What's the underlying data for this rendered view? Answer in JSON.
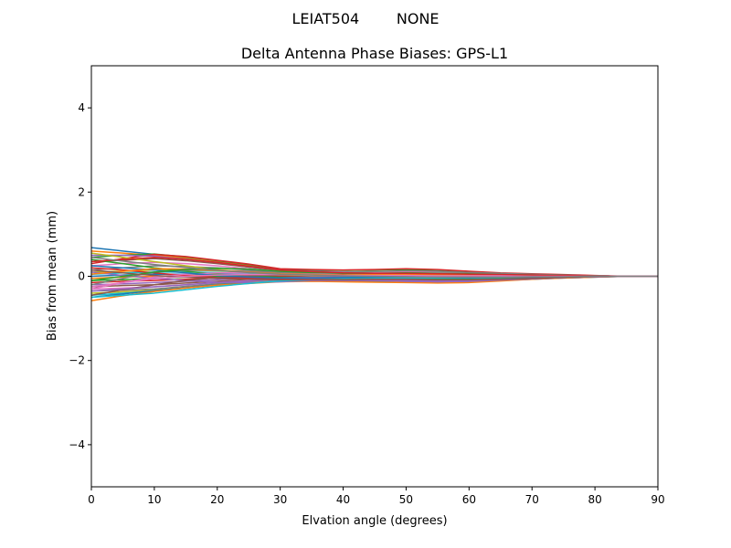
{
  "chart_data": {
    "type": "line",
    "suptitle": "LEIAT504        NONE",
    "title": "Delta Antenna Phase Biases: GPS-L1",
    "xlabel": "Elvation angle (degrees)",
    "ylabel": "Bias from mean (mm)",
    "xlim": [
      0,
      90
    ],
    "ylim": [
      -5,
      5
    ],
    "xticks": [
      "0",
      "10",
      "20",
      "30",
      "40",
      "50",
      "60",
      "70",
      "80",
      "90"
    ],
    "yticks": [
      "−4",
      "−2",
      "0",
      "2",
      "4"
    ],
    "grid": false,
    "legend": "none",
    "x": [
      0,
      5,
      10,
      15,
      20,
      25,
      30,
      35,
      40,
      45,
      50,
      55,
      60,
      65,
      70,
      75,
      80,
      85,
      90
    ],
    "palette": [
      "#1f77b4",
      "#ff7f0e",
      "#2ca02c",
      "#d62728",
      "#9467bd",
      "#8c564b",
      "#e377c2",
      "#7f7f7f",
      "#bcbd22",
      "#17becf"
    ],
    "series": [
      {
        "values": [
          0.68,
          0.6,
          0.52,
          0.42,
          0.32,
          0.22,
          0.15,
          0.1,
          0.06,
          0.05,
          0.05,
          0.05,
          0.04,
          0.03,
          0.02,
          0.01,
          0.0,
          0.0,
          0.0
        ]
      },
      {
        "values": [
          0.6,
          0.55,
          0.5,
          0.44,
          0.36,
          0.26,
          0.16,
          0.12,
          0.1,
          0.11,
          0.12,
          0.1,
          0.07,
          0.05,
          0.04,
          0.02,
          0.01,
          0.0,
          0.0
        ]
      },
      {
        "values": [
          0.45,
          0.5,
          0.53,
          0.46,
          0.37,
          0.28,
          0.17,
          0.15,
          0.14,
          0.15,
          0.16,
          0.13,
          0.1,
          0.07,
          0.05,
          0.03,
          0.01,
          0.0,
          0.0
        ]
      },
      {
        "values": [
          0.3,
          0.42,
          0.52,
          0.47,
          0.38,
          0.29,
          0.18,
          0.16,
          0.15,
          0.16,
          0.18,
          0.16,
          0.12,
          0.08,
          0.06,
          0.04,
          0.02,
          0.0,
          0.0
        ]
      },
      {
        "values": [
          0.5,
          0.5,
          0.48,
          0.4,
          0.33,
          0.24,
          0.15,
          0.12,
          0.1,
          0.11,
          0.12,
          0.1,
          0.08,
          0.06,
          0.04,
          0.02,
          0.01,
          0.0,
          0.0
        ]
      },
      {
        "values": [
          0.35,
          0.38,
          0.42,
          0.37,
          0.3,
          0.22,
          0.14,
          0.11,
          0.08,
          0.09,
          0.1,
          0.09,
          0.07,
          0.05,
          0.03,
          0.02,
          0.01,
          0.0,
          0.0
        ]
      },
      {
        "values": [
          0.25,
          0.3,
          0.33,
          0.3,
          0.25,
          0.18,
          0.12,
          0.09,
          0.07,
          0.08,
          0.09,
          0.08,
          0.06,
          0.04,
          0.03,
          0.02,
          0.01,
          0.0,
          0.0
        ]
      },
      {
        "values": [
          0.15,
          0.2,
          0.25,
          0.23,
          0.2,
          0.15,
          0.1,
          0.08,
          0.06,
          0.07,
          0.08,
          0.07,
          0.05,
          0.04,
          0.03,
          0.02,
          0.01,
          0.0,
          0.0
        ]
      },
      {
        "values": [
          0.1,
          0.12,
          0.15,
          0.15,
          0.13,
          0.1,
          0.07,
          0.05,
          0.04,
          0.05,
          0.06,
          0.05,
          0.04,
          0.03,
          0.02,
          0.01,
          0.0,
          0.0,
          0.0
        ]
      },
      {
        "values": [
          0.05,
          0.08,
          0.1,
          0.1,
          0.09,
          0.07,
          0.05,
          0.04,
          0.03,
          0.04,
          0.05,
          0.04,
          0.03,
          0.02,
          0.02,
          0.01,
          0.0,
          0.0,
          0.0
        ]
      },
      {
        "values": [
          0.0,
          0.03,
          0.05,
          0.05,
          0.05,
          0.04,
          0.03,
          0.02,
          0.02,
          0.03,
          0.03,
          0.03,
          0.02,
          0.02,
          0.01,
          0.01,
          0.0,
          0.0,
          0.0
        ]
      },
      {
        "values": [
          -0.05,
          -0.02,
          0.0,
          0.02,
          0.02,
          0.02,
          0.01,
          0.01,
          0.01,
          0.02,
          0.02,
          0.02,
          0.01,
          0.01,
          0.01,
          0.0,
          0.0,
          0.0,
          0.0
        ]
      },
      {
        "values": [
          -0.1,
          -0.08,
          -0.05,
          -0.02,
          0.0,
          0.0,
          0.0,
          0.0,
          0.0,
          0.01,
          0.01,
          0.01,
          0.0,
          0.0,
          0.0,
          0.0,
          0.0,
          0.0,
          0.0
        ]
      },
      {
        "values": [
          -0.15,
          -0.12,
          -0.1,
          -0.07,
          -0.04,
          -0.02,
          -0.01,
          -0.01,
          -0.01,
          0.0,
          0.0,
          -0.01,
          -0.01,
          -0.01,
          -0.01,
          0.0,
          0.0,
          0.0,
          0.0
        ]
      },
      {
        "values": [
          -0.2,
          -0.18,
          -0.15,
          -0.12,
          -0.08,
          -0.05,
          -0.03,
          -0.02,
          -0.02,
          -0.02,
          -0.02,
          -0.03,
          -0.03,
          -0.02,
          -0.02,
          -0.01,
          0.0,
          0.0,
          0.0
        ]
      },
      {
        "values": [
          -0.25,
          -0.22,
          -0.2,
          -0.16,
          -0.12,
          -0.08,
          -0.05,
          -0.04,
          -0.04,
          -0.05,
          -0.05,
          -0.05,
          -0.05,
          -0.04,
          -0.03,
          -0.02,
          -0.01,
          0.0,
          0.0
        ]
      },
      {
        "values": [
          -0.3,
          -0.28,
          -0.25,
          -0.2,
          -0.15,
          -0.1,
          -0.07,
          -0.06,
          -0.06,
          -0.07,
          -0.08,
          -0.08,
          -0.07,
          -0.05,
          -0.04,
          -0.02,
          -0.01,
          0.0,
          0.0
        ]
      },
      {
        "values": [
          -0.35,
          -0.33,
          -0.3,
          -0.24,
          -0.18,
          -0.13,
          -0.09,
          -0.08,
          -0.08,
          -0.09,
          -0.1,
          -0.1,
          -0.09,
          -0.07,
          -0.05,
          -0.03,
          -0.01,
          0.0,
          0.0
        ]
      },
      {
        "values": [
          -0.4,
          -0.37,
          -0.33,
          -0.27,
          -0.2,
          -0.15,
          -0.1,
          -0.09,
          -0.1,
          -0.11,
          -0.12,
          -0.12,
          -0.11,
          -0.08,
          -0.06,
          -0.03,
          -0.01,
          0.0,
          0.0
        ]
      },
      {
        "values": [
          -0.45,
          -0.4,
          -0.35,
          -0.28,
          -0.21,
          -0.16,
          -0.11,
          -0.1,
          -0.11,
          -0.12,
          -0.13,
          -0.13,
          -0.12,
          -0.09,
          -0.06,
          -0.03,
          -0.02,
          0.0,
          0.0
        ]
      },
      {
        "values": [
          -0.5,
          -0.42,
          -0.34,
          -0.27,
          -0.2,
          -0.16,
          -0.12,
          -0.11,
          -0.12,
          -0.13,
          -0.14,
          -0.15,
          -0.14,
          -0.1,
          -0.07,
          -0.04,
          -0.02,
          0.0,
          0.0
        ]
      },
      {
        "values": [
          -0.58,
          -0.46,
          -0.36,
          -0.28,
          -0.21,
          -0.17,
          -0.13,
          -0.12,
          -0.13,
          -0.14,
          -0.15,
          -0.16,
          -0.15,
          -0.11,
          -0.07,
          -0.04,
          -0.02,
          0.0,
          0.0
        ]
      },
      {
        "values": [
          0.4,
          0.3,
          0.2,
          0.12,
          0.05,
          0.0,
          -0.03,
          -0.05,
          -0.06,
          -0.05,
          -0.04,
          -0.05,
          -0.05,
          -0.04,
          -0.03,
          -0.02,
          -0.01,
          0.0,
          0.0
        ]
      },
      {
        "values": [
          0.2,
          0.15,
          0.08,
          0.02,
          -0.03,
          -0.05,
          -0.06,
          -0.07,
          -0.09,
          -0.1,
          -0.1,
          -0.1,
          -0.09,
          -0.07,
          -0.05,
          -0.03,
          -0.01,
          0.0,
          0.0
        ]
      },
      {
        "values": [
          0.1,
          0.02,
          -0.05,
          -0.1,
          -0.14,
          -0.15,
          -0.13,
          -0.1,
          -0.1,
          -0.1,
          -0.09,
          -0.1,
          -0.1,
          -0.08,
          -0.06,
          -0.03,
          -0.01,
          0.0,
          0.0
        ]
      },
      {
        "values": [
          -0.45,
          -0.32,
          -0.2,
          -0.1,
          -0.03,
          0.01,
          0.03,
          0.04,
          0.06,
          0.08,
          0.1,
          0.1,
          0.08,
          0.06,
          0.04,
          0.02,
          0.01,
          0.0,
          0.0
        ]
      },
      {
        "values": [
          -0.3,
          -0.15,
          -0.02,
          0.05,
          0.08,
          0.08,
          0.07,
          0.06,
          0.07,
          0.09,
          0.11,
          0.1,
          0.08,
          0.06,
          0.04,
          0.02,
          0.01,
          0.0,
          0.0
        ]
      },
      {
        "values": [
          -0.2,
          -0.05,
          0.1,
          0.14,
          0.14,
          0.12,
          0.09,
          0.08,
          0.09,
          0.11,
          0.13,
          0.12,
          0.09,
          0.07,
          0.05,
          0.03,
          0.01,
          0.0,
          0.0
        ]
      },
      {
        "values": [
          0.55,
          0.45,
          0.35,
          0.25,
          0.16,
          0.09,
          0.04,
          0.02,
          0.02,
          0.03,
          0.04,
          0.04,
          0.03,
          0.02,
          0.01,
          0.01,
          0.0,
          0.0,
          0.0
        ]
      },
      {
        "values": [
          -0.5,
          -0.45,
          -0.4,
          -0.32,
          -0.24,
          -0.17,
          -0.11,
          -0.08,
          -0.06,
          -0.05,
          -0.04,
          -0.04,
          -0.04,
          -0.03,
          -0.02,
          -0.01,
          0.0,
          0.0,
          0.0
        ]
      },
      {
        "values": [
          0.25,
          0.2,
          0.15,
          0.08,
          0.02,
          -0.02,
          -0.04,
          -0.04,
          -0.03,
          -0.02,
          -0.01,
          -0.02,
          -0.03,
          -0.02,
          -0.02,
          -0.01,
          0.0,
          0.0,
          0.0
        ]
      },
      {
        "values": [
          0.05,
          0.12,
          0.18,
          0.17,
          0.14,
          0.1,
          0.06,
          0.04,
          0.03,
          0.04,
          0.05,
          0.05,
          0.04,
          0.03,
          0.02,
          0.01,
          0.0,
          0.0,
          0.0
        ]
      },
      {
        "values": [
          -0.1,
          0.0,
          0.1,
          0.16,
          0.19,
          0.17,
          0.12,
          0.09,
          0.07,
          0.07,
          0.08,
          0.07,
          0.06,
          0.04,
          0.03,
          0.02,
          0.01,
          0.0,
          0.0
        ]
      },
      {
        "values": [
          0.35,
          0.4,
          0.45,
          0.4,
          0.33,
          0.24,
          0.15,
          0.11,
          0.08,
          0.07,
          0.07,
          0.06,
          0.05,
          0.04,
          0.03,
          0.02,
          0.01,
          0.0,
          0.0
        ]
      },
      {
        "values": [
          -0.35,
          -0.3,
          -0.25,
          -0.2,
          -0.15,
          -0.11,
          -0.08,
          -0.07,
          -0.08,
          -0.1,
          -0.12,
          -0.13,
          -0.12,
          -0.09,
          -0.06,
          -0.03,
          -0.01,
          0.0,
          0.0
        ]
      },
      {
        "values": [
          0.15,
          0.08,
          0.02,
          -0.02,
          -0.05,
          -0.07,
          -0.08,
          -0.08,
          -0.08,
          -0.07,
          -0.07,
          -0.08,
          -0.08,
          -0.07,
          -0.05,
          -0.03,
          -0.01,
          0.0,
          0.0
        ]
      },
      {
        "values": [
          -0.25,
          -0.15,
          -0.06,
          0.0,
          0.03,
          0.04,
          0.04,
          0.03,
          0.02,
          0.02,
          0.02,
          0.01,
          0.01,
          0.01,
          0.0,
          0.0,
          0.0,
          0.0,
          0.0
        ]
      },
      {
        "values": [
          0.45,
          0.36,
          0.28,
          0.21,
          0.14,
          0.09,
          0.05,
          0.03,
          0.01,
          0.0,
          -0.01,
          -0.02,
          -0.02,
          -0.02,
          -0.01,
          -0.01,
          0.0,
          0.0,
          0.0
        ]
      }
    ]
  }
}
